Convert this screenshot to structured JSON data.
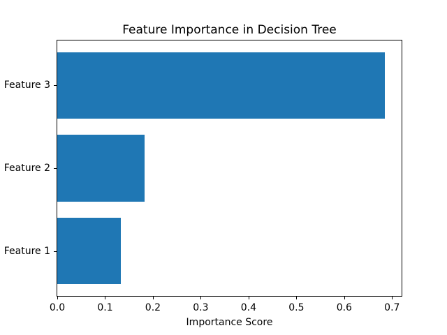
{
  "chart_data": {
    "type": "bar",
    "orientation": "horizontal",
    "title": "Feature Importance in Decision Tree",
    "xlabel": "Importance Score",
    "ylabel": "",
    "categories": [
      "Feature 1",
      "Feature 2",
      "Feature 3"
    ],
    "values": [
      0.133,
      0.182,
      0.685
    ],
    "xlim": [
      0,
      0.72
    ],
    "xticks": [
      0.0,
      0.1,
      0.2,
      0.3,
      0.4,
      0.5,
      0.6,
      0.7
    ],
    "xtick_labels": [
      "0.0",
      "0.1",
      "0.2",
      "0.3",
      "0.4",
      "0.5",
      "0.6",
      "0.7"
    ],
    "bar_color": "#1f77b4",
    "spine_color": "#000000",
    "text_color": "#000000",
    "background_color": "#ffffff",
    "grid": false,
    "legend": false
  }
}
